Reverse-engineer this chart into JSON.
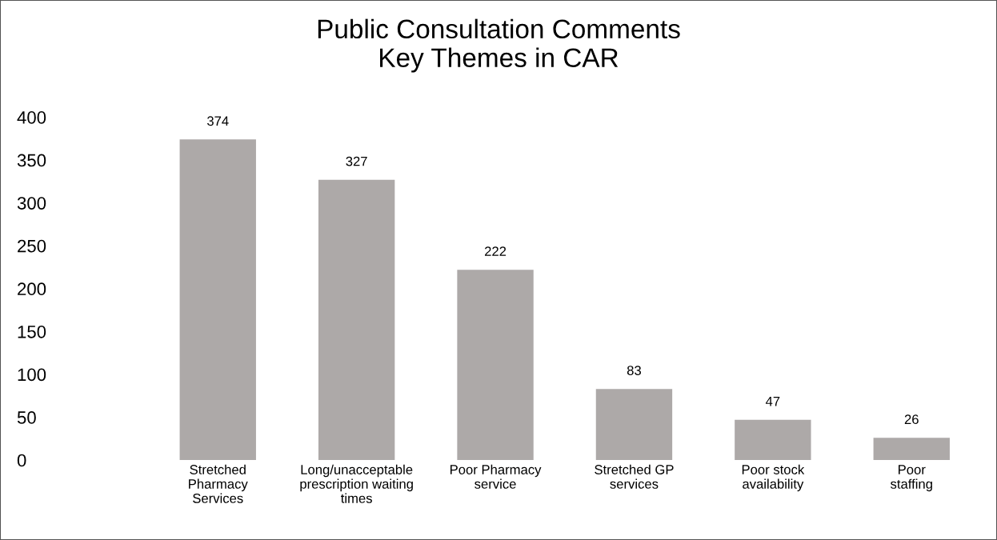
{
  "chart_data": {
    "type": "bar",
    "title": "Public Consultation Comments\nKey Themes in CAR",
    "categories": [
      "Stretched\nPharmacy\nServices",
      "Long/unacceptable\nprescription waiting\ntimes",
      "Poor Pharmacy\nservice",
      "Stretched GP\nservices",
      "Poor stock\navailability",
      "Poor\nstaffing"
    ],
    "values": [
      374,
      327,
      222,
      83,
      47,
      26
    ],
    "color": "#ada9a8",
    "ylim": [
      0,
      400
    ],
    "yticks": [
      0,
      50,
      100,
      150,
      200,
      250,
      300,
      350,
      400
    ],
    "data_labels": true,
    "grid": false,
    "legend": false
  }
}
